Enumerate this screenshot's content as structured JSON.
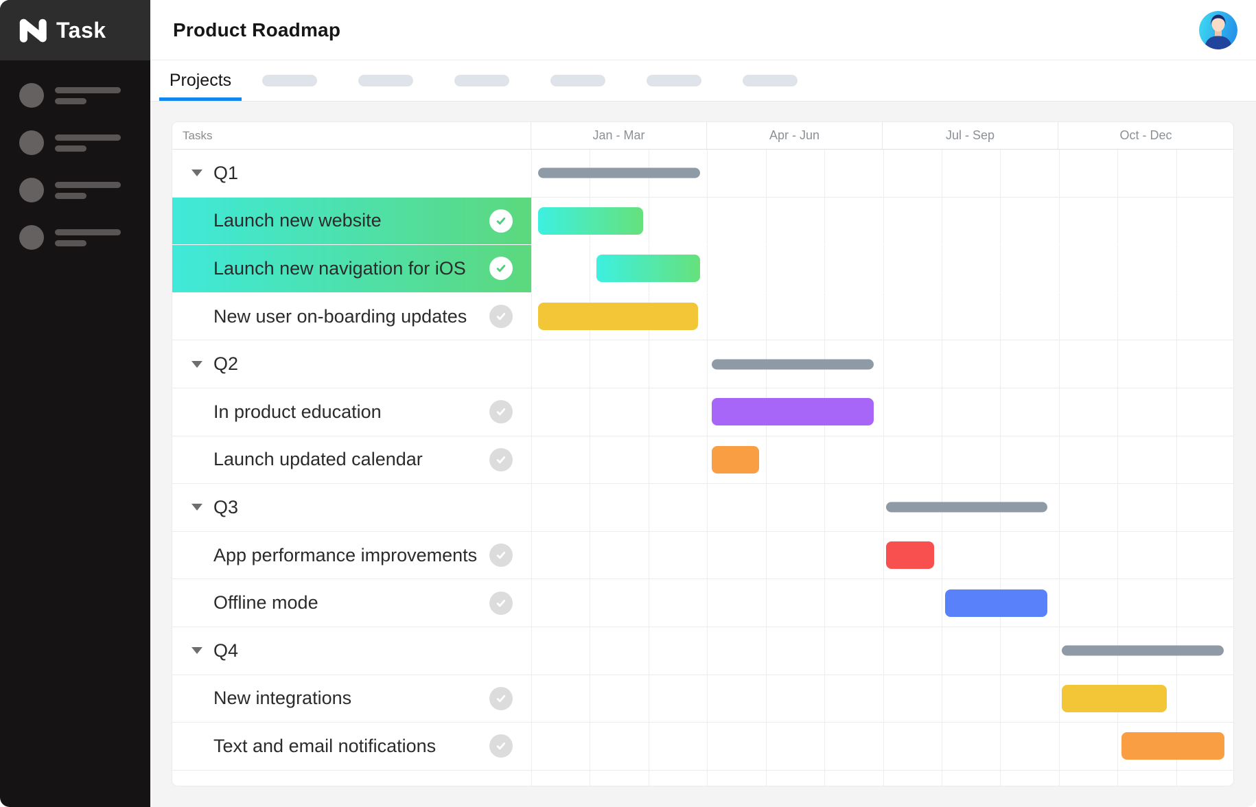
{
  "brand": {
    "name": "Task"
  },
  "header": {
    "title": "Product Roadmap"
  },
  "tabs": {
    "active_label": "Projects",
    "placeholder_count": 6
  },
  "sidebar": {
    "placeholder_count": 4
  },
  "gantt": {
    "tasks_header": "Tasks",
    "quarters": [
      "Jan - Mar",
      "Apr - Jun",
      "Jul - Sep",
      "Oct - Dec"
    ],
    "months_total": 12,
    "rows": [
      {
        "type": "group",
        "label": "Q1",
        "bar": {
          "kind": "summary",
          "start": 0.12,
          "end": 2.89
        }
      },
      {
        "type": "task",
        "label": "Launch new website",
        "completed": true,
        "highlight": true,
        "bar": {
          "kind": "gradient",
          "start": 0.12,
          "end": 1.91
        }
      },
      {
        "type": "task",
        "label": "Launch new navigation for iOS",
        "completed": true,
        "highlight": true,
        "bar": {
          "kind": "gradient",
          "start": 1.11,
          "end": 2.89
        }
      },
      {
        "type": "task",
        "label": "New user on-boarding updates",
        "completed": false,
        "bar": {
          "kind": "solid",
          "color": "#F2C636",
          "start": 0.12,
          "end": 2.85
        }
      },
      {
        "type": "group",
        "label": "Q2",
        "bar": {
          "kind": "summary",
          "start": 3.08,
          "end": 5.85
        }
      },
      {
        "type": "task",
        "label": "In product education",
        "completed": false,
        "bar": {
          "kind": "solid",
          "color": "#A866F8",
          "start": 3.08,
          "end": 5.85
        }
      },
      {
        "type": "task",
        "label": "Launch updated calendar",
        "completed": false,
        "bar": {
          "kind": "solid",
          "color": "#FA9E43",
          "start": 3.08,
          "end": 3.9
        }
      },
      {
        "type": "group",
        "label": "Q3",
        "bar": {
          "kind": "summary",
          "start": 6.07,
          "end": 8.82
        }
      },
      {
        "type": "task",
        "label": "App performance improvements",
        "completed": false,
        "bar": {
          "kind": "solid",
          "color": "#F8504F",
          "start": 6.07,
          "end": 6.88
        }
      },
      {
        "type": "task",
        "label": "Offline mode",
        "completed": false,
        "bar": {
          "kind": "solid",
          "color": "#5982FA",
          "start": 7.07,
          "end": 8.82
        }
      },
      {
        "type": "group",
        "label": "Q4",
        "bar": {
          "kind": "summary",
          "start": 9.07,
          "end": 11.84
        }
      },
      {
        "type": "task",
        "label": "New integrations",
        "completed": false,
        "bar": {
          "kind": "solid",
          "color": "#F2C636",
          "start": 9.07,
          "end": 10.86
        }
      },
      {
        "type": "task",
        "label": "Text  and email notifications",
        "completed": false,
        "bar": {
          "kind": "solid",
          "color": "#FA9E43",
          "start": 10.09,
          "end": 11.85
        }
      }
    ]
  },
  "colors": {
    "accent_blue": "#1486EF",
    "summary_bar": "#8F9AA7",
    "bar_gradient_start": "#3DF0E0",
    "bar_gradient_end": "#66E17C",
    "row_gradient_start": "#3FE9DA",
    "row_gradient_end": "#5CD87D",
    "check_green": "#50CC7D",
    "yellow": "#F2C636",
    "orange": "#FA9E43",
    "purple": "#A866F8",
    "red": "#F8504F",
    "blue": "#5982FA"
  }
}
